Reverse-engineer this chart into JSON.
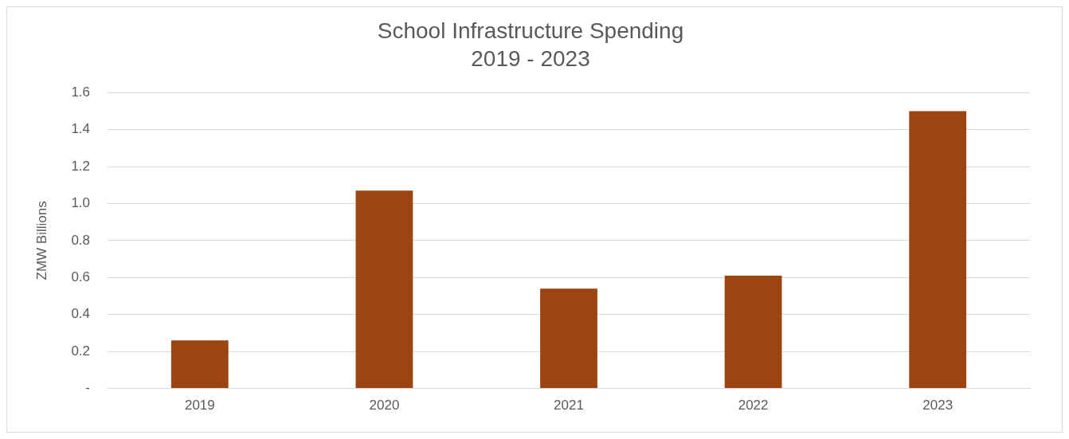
{
  "chart_data": {
    "type": "bar",
    "title": "School Infrastructure Spending",
    "subtitle": "2019 - 2023",
    "ylabel": "ZMW Billions",
    "categories": [
      "2019",
      "2020",
      "2021",
      "2022",
      "2023"
    ],
    "values": [
      0.26,
      1.07,
      0.54,
      0.61,
      1.5
    ],
    "color": "#9c4510",
    "ylim": [
      0,
      1.6
    ],
    "yticks": [
      {
        "value": 0,
        "label": "-"
      },
      0.2,
      0.4,
      0.6,
      0.8,
      {
        "value": 1,
        "label": "1.0"
      },
      1.2,
      1.4,
      1.6
    ],
    "grid": "y",
    "legend": false
  }
}
